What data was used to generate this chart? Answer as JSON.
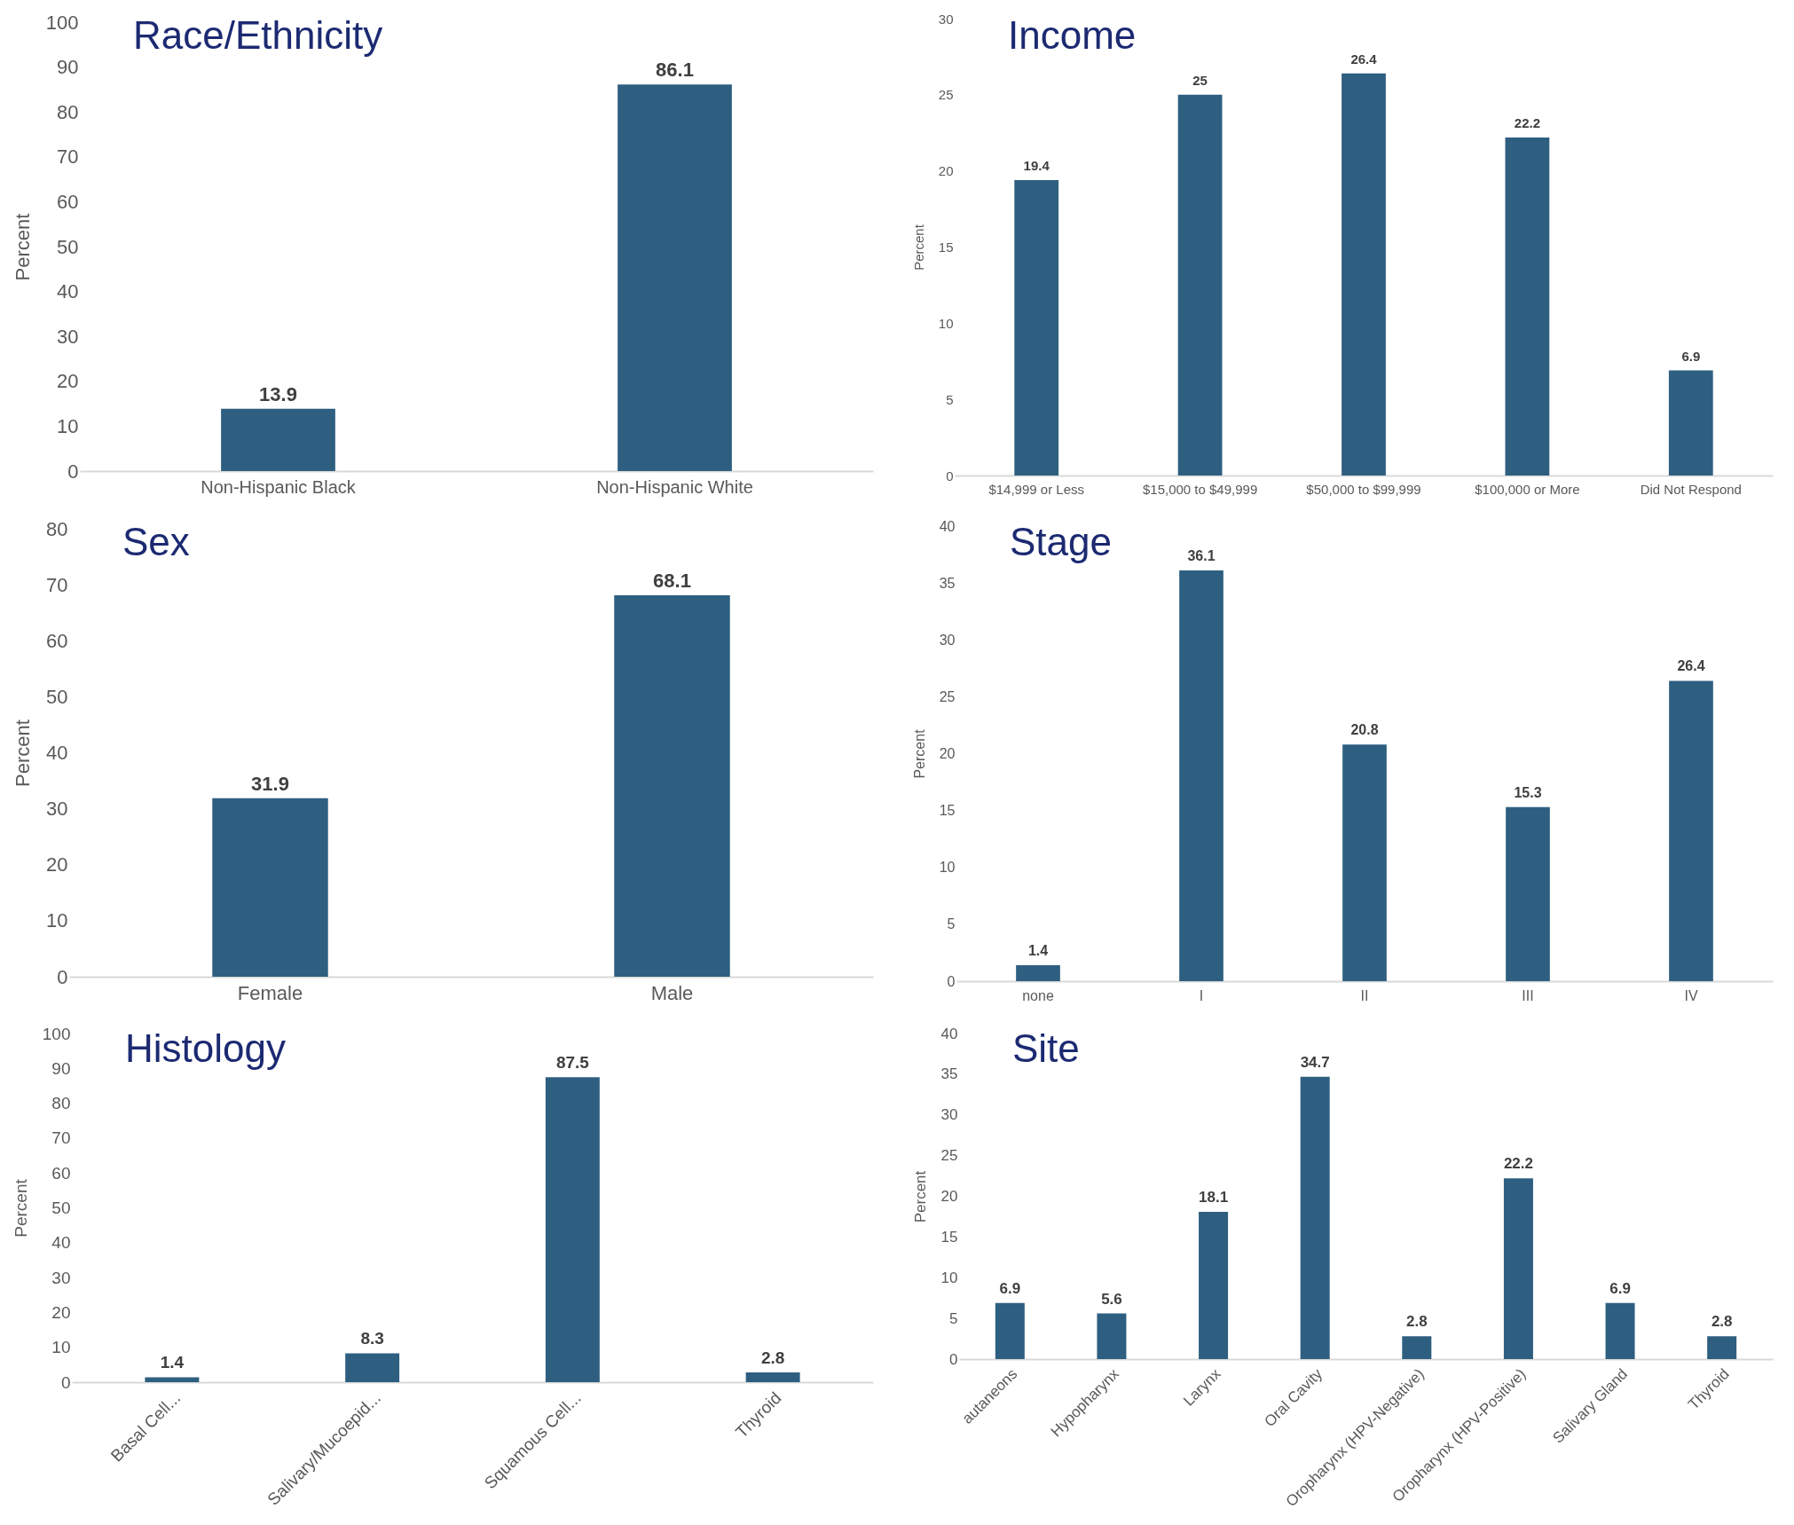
{
  "chart_data": [
    {
      "type": "bar",
      "title": "Race/Ethnicity",
      "ylabel": "Percent",
      "categories": [
        "Non-Hispanic Black",
        "Non-Hispanic White"
      ],
      "values": [
        13.9,
        86.1
      ],
      "color": "#2e5f80",
      "ylim": [
        0,
        100
      ],
      "yticks": [
        0,
        10,
        20,
        30,
        40,
        50,
        60,
        70,
        80,
        90,
        100
      ],
      "data_labels": true,
      "grid": false
    },
    {
      "type": "bar",
      "title": "Income",
      "ylabel": "Percent",
      "categories": [
        "$14,999 or Less",
        "$15,000 to $49,999",
        "$50,000 to $99,999",
        "$100,000 or More",
        "Did Not Respond"
      ],
      "values": [
        19.4,
        25,
        26.4,
        22.2,
        6.9
      ],
      "color": "#2e5f80",
      "ylim": [
        0,
        30
      ],
      "yticks": [
        0,
        5,
        10,
        15,
        20,
        25,
        30
      ],
      "data_labels": true,
      "grid": false
    },
    {
      "type": "bar",
      "title": "Sex",
      "ylabel": "Percent",
      "categories": [
        "Female",
        "Male"
      ],
      "values": [
        31.9,
        68.1
      ],
      "color": "#2e5f80",
      "ylim": [
        0,
        80
      ],
      "yticks": [
        0,
        10,
        20,
        30,
        40,
        50,
        60,
        70,
        80
      ],
      "data_labels": true,
      "grid": false
    },
    {
      "type": "bar",
      "title": "Stage",
      "ylabel": "Percent",
      "categories": [
        "none",
        "I",
        "II",
        "III",
        "IV"
      ],
      "values": [
        1.4,
        36.1,
        20.8,
        15.3,
        26.4
      ],
      "color": "#2e5f80",
      "ylim": [
        0,
        40
      ],
      "yticks": [
        0,
        5,
        10,
        15,
        20,
        25,
        30,
        35,
        40
      ],
      "data_labels": true,
      "grid": false
    },
    {
      "type": "bar",
      "title": "Histology",
      "ylabel": "Percent",
      "categories": [
        "Basal Cell...",
        "Salivary/Mucoepid...",
        "Squamous Cell...",
        "Thyroid"
      ],
      "values": [
        1.4,
        8.3,
        87.5,
        2.8
      ],
      "color": "#2e5f80",
      "ylim": [
        0,
        100
      ],
      "yticks": [
        0,
        10,
        20,
        30,
        40,
        50,
        60,
        70,
        80,
        90,
        100
      ],
      "data_labels": true,
      "grid": false
    },
    {
      "type": "bar",
      "title": "Site",
      "ylabel": "Percent",
      "categories": [
        "autaneons",
        "Hypopharynx",
        "Larynx",
        "Oral Cavity",
        "Oropharynx (HPV-Negative)",
        "Oropharynx (HPV-Positive)",
        "Salivary Gland",
        "Thyroid"
      ],
      "values": [
        6.9,
        5.6,
        18.1,
        34.7,
        2.8,
        22.2,
        6.9,
        2.8
      ],
      "color": "#2e5f80",
      "ylim": [
        0,
        40
      ],
      "yticks": [
        0,
        5,
        10,
        15,
        20,
        25,
        30,
        35,
        40
      ],
      "data_labels": true,
      "grid": false
    }
  ]
}
